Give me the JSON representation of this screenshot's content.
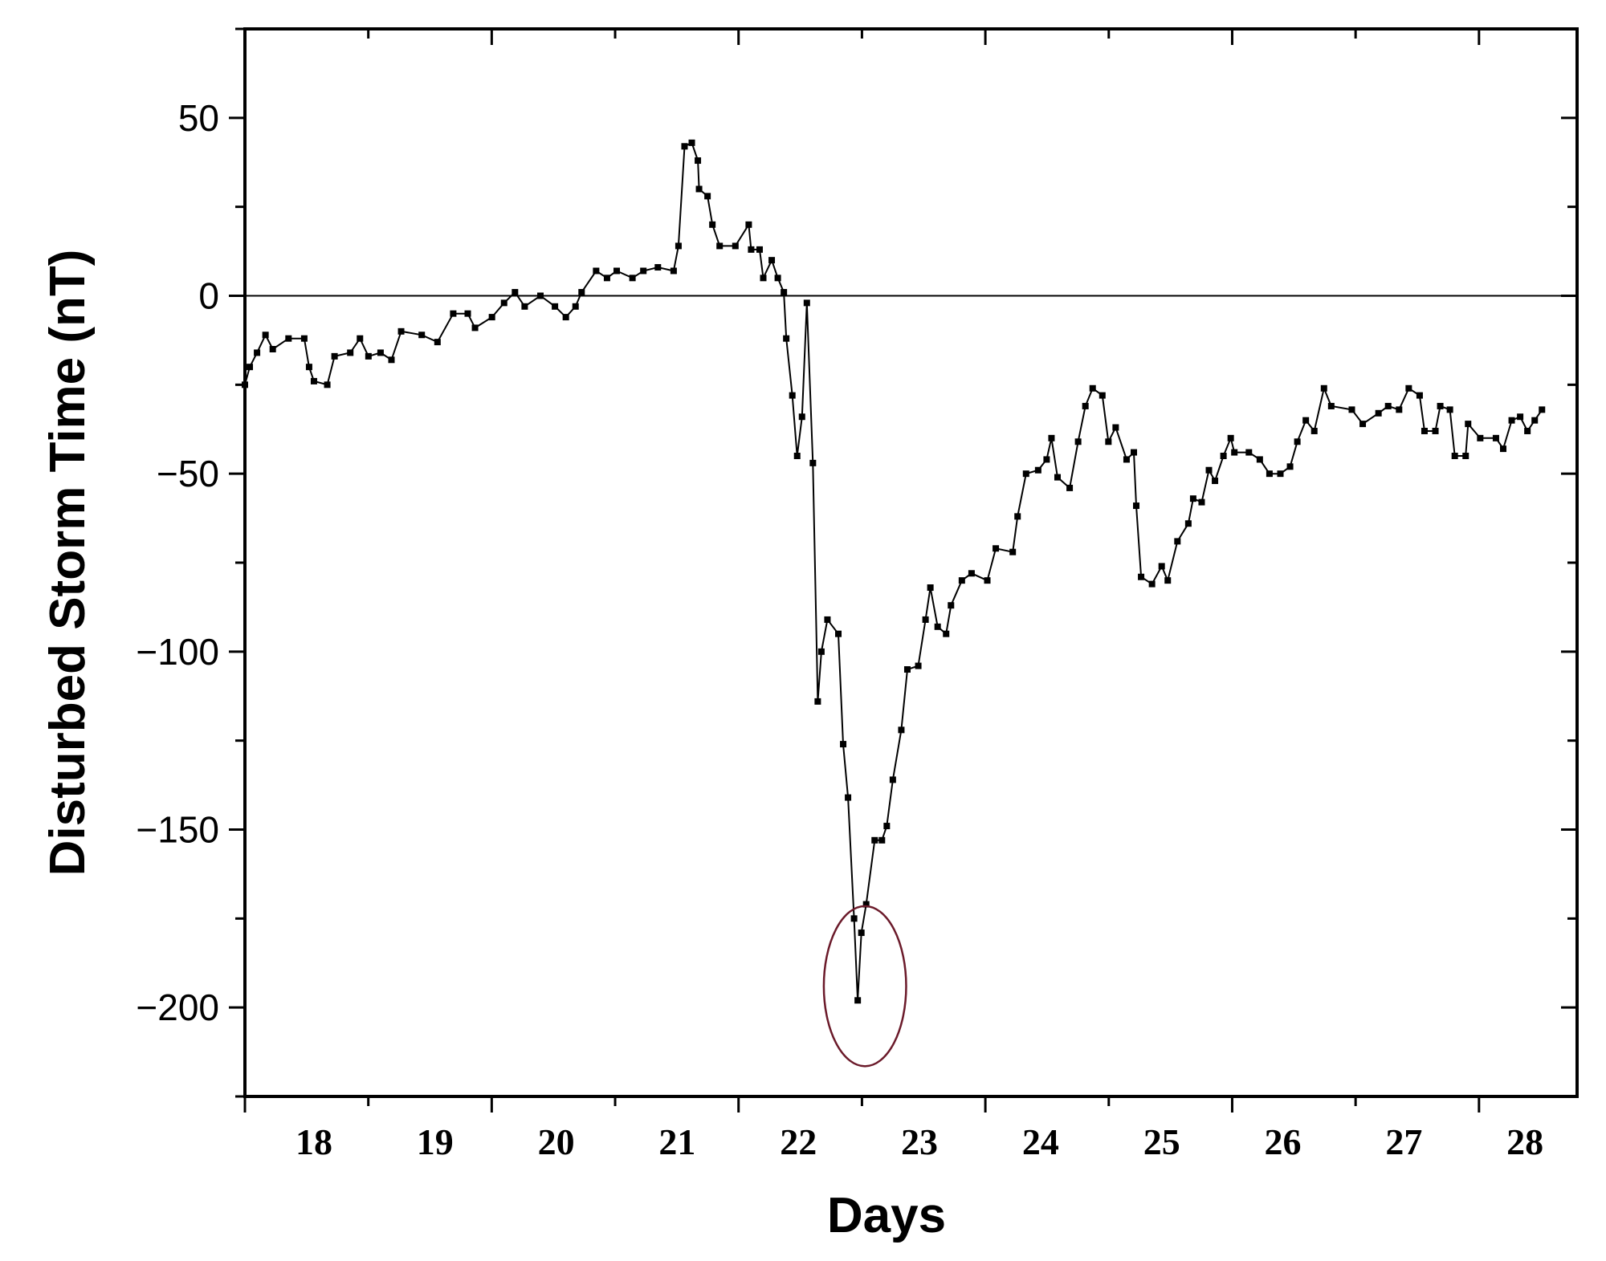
{
  "chart_data": {
    "type": "line",
    "title": "",
    "xlabel": "Days",
    "ylabel": "Disturbed Storm Time (nT)",
    "xlim": [
      17.43,
      28.43
    ],
    "ylim": [
      -225,
      75
    ],
    "grid": false,
    "legend": "none",
    "x_tick_labels": [
      "18",
      "19",
      "20",
      "21",
      "22",
      "23",
      "24",
      "25",
      "26",
      "27",
      "28"
    ],
    "x_tick_values": [
      18,
      19,
      20,
      21,
      22,
      23,
      24,
      25,
      26,
      27,
      28
    ],
    "y_tick_labels": [
      "50",
      "0",
      "−50",
      "−100",
      "−150",
      "−200"
    ],
    "y_tick_values": [
      50,
      0,
      -50,
      -100,
      -150,
      -200
    ],
    "reference_line": {
      "y": 0
    },
    "line_color": "#000000",
    "annotation": {
      "type": "ellipse",
      "center": [
        22.55,
        -194
      ],
      "radius_days": 0.34,
      "radius_nT": 22.5,
      "color": "#6b1a2a"
    },
    "series": [
      {
        "x": [
          17.43,
          17.47,
          17.53,
          17.6,
          17.66,
          17.79,
          17.92,
          17.96,
          18.0,
          18.11,
          18.17,
          18.3,
          18.38,
          18.45,
          18.55,
          18.64,
          18.72,
          18.89,
          19.02,
          19.15,
          19.27,
          19.33,
          19.47,
          19.57,
          19.66,
          19.74,
          19.87,
          19.99,
          20.08,
          20.16,
          20.21,
          20.33,
          20.42,
          20.5,
          20.63,
          20.72,
          20.84,
          20.97,
          21.01,
          21.06,
          21.12,
          21.17,
          21.18,
          21.25,
          21.29,
          21.35,
          21.48,
          21.59,
          21.61,
          21.68,
          21.71,
          21.78,
          21.83,
          21.88,
          21.9,
          21.95,
          21.99,
          22.03,
          22.07,
          22.12,
          22.16,
          22.19,
          22.24,
          22.33,
          22.37,
          22.41,
          22.46,
          22.49,
          22.52,
          22.56,
          22.63,
          22.69,
          22.73,
          22.78,
          22.85,
          22.9,
          22.99,
          23.05,
          23.09,
          23.15,
          23.22,
          23.26,
          23.35,
          23.43,
          23.56,
          23.63,
          23.77,
          23.81,
          23.88,
          23.98,
          24.05,
          24.09,
          24.14,
          24.24,
          24.31,
          24.37,
          24.43,
          24.51,
          24.56,
          24.62,
          24.71,
          24.77,
          24.79,
          24.83,
          24.92,
          25.0,
          25.05,
          25.13,
          25.22,
          25.26,
          25.33,
          25.39,
          25.44,
          25.51,
          25.57,
          25.6,
          25.72,
          25.81,
          25.89,
          25.98,
          26.06,
          26.12,
          26.19,
          26.26,
          26.34,
          26.4,
          26.57,
          26.66,
          26.79,
          26.87,
          26.96,
          27.04,
          27.13,
          27.17,
          27.26,
          27.3,
          27.38,
          27.42,
          27.51,
          27.53,
          27.63,
          27.76,
          27.82,
          27.89,
          27.96,
          28.02,
          28.08,
          28.14
        ],
        "y": [
          -25,
          -20,
          -16,
          -11,
          -15,
          -12,
          -12,
          -20,
          -24,
          -25,
          -17,
          -16,
          -12,
          -17,
          -16,
          -18,
          -10,
          -11,
          -13,
          -5,
          -5,
          -9,
          -6,
          -2,
          1,
          -3,
          0,
          -3,
          -6,
          -3,
          1,
          7,
          5,
          7,
          5,
          7,
          8,
          7,
          14,
          42,
          43,
          38,
          30,
          28,
          20,
          14,
          14,
          20,
          13,
          13,
          5,
          10,
          5,
          1,
          -12,
          -28,
          -45,
          -34,
          -2,
          -47,
          -114,
          -100,
          -91,
          -95,
          -126,
          -141,
          -175,
          -198,
          -179,
          -171,
          -153,
          -153,
          -149,
          -136,
          -122,
          -105,
          -104,
          -91,
          -82,
          -93,
          -95,
          -87,
          -80,
          -78,
          -80,
          -71,
          -72,
          -62,
          -50,
          -49,
          -46,
          -40,
          -51,
          -54,
          -41,
          -31,
          -26,
          -28,
          -41,
          -37,
          -46,
          -44,
          -59,
          -79,
          -81,
          -76,
          -80,
          -69,
          -64,
          -57,
          -58,
          -49,
          -52,
          -45,
          -40,
          -44,
          -44,
          -46,
          -50,
          -50,
          -48,
          -41,
          -35,
          -38,
          -26,
          -31,
          -32,
          -36,
          -33,
          -31,
          -32,
          -26,
          -28,
          -38,
          -38,
          -31,
          -32,
          -45,
          -45,
          -36,
          -40,
          -40,
          -43,
          -35,
          -34,
          -38,
          -35,
          -32
        ]
      }
    ]
  }
}
